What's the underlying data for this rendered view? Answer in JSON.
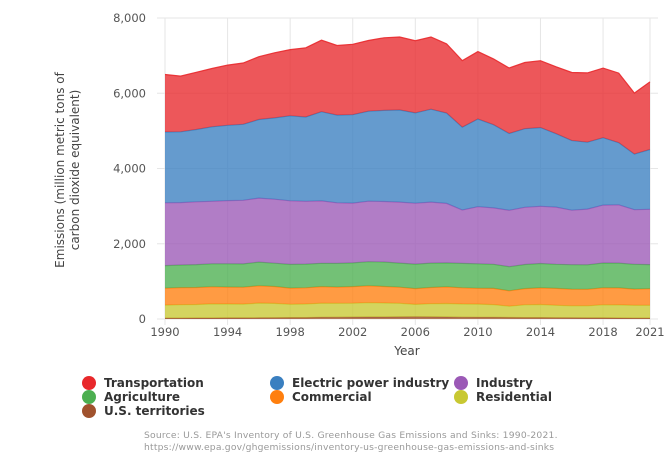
{
  "chart_data": {
    "type": "area",
    "stacked": true,
    "title": "",
    "xlabel": "Year",
    "ylabel": "Emissions (million metric tons of carbon dioxide equivalent)",
    "ylabel_lines": [
      "Emissions (million metric tons of",
      "carbon dioxide equivalent)"
    ],
    "x": [
      1990,
      1991,
      1992,
      1993,
      1994,
      1995,
      1996,
      1997,
      1998,
      1999,
      2000,
      2001,
      2002,
      2003,
      2004,
      2005,
      2006,
      2007,
      2008,
      2009,
      2010,
      2011,
      2012,
      2013,
      2014,
      2015,
      2016,
      2017,
      2018,
      2019,
      2020,
      2021
    ],
    "xlim": [
      1990,
      2021
    ],
    "ylim": [
      0,
      8000
    ],
    "x_ticks": [
      1990,
      1994,
      1998,
      2002,
      2006,
      2010,
      2014,
      2018,
      2021
    ],
    "x_tick_labels": [
      "1990",
      "1994",
      "1998",
      "2002",
      "2006",
      "2010",
      "2014",
      "2018",
      "2021"
    ],
    "y_ticks": [
      0,
      2000,
      4000,
      6000,
      8000
    ],
    "y_tick_labels": [
      "0",
      "2,000",
      "4,000",
      "6,000",
      "8,000"
    ],
    "grid": true,
    "legend_position": "bottom",
    "series": [
      {
        "name": "U.S. territories",
        "color": "#a0522d",
        "values": [
          24,
          25,
          26,
          27,
          28,
          30,
          32,
          34,
          36,
          38,
          45,
          48,
          50,
          52,
          54,
          56,
          58,
          56,
          52,
          48,
          46,
          44,
          40,
          38,
          36,
          34,
          32,
          30,
          28,
          26,
          24,
          25
        ]
      },
      {
        "name": "Residential",
        "color": "#c8c832",
        "values": [
          345,
          355,
          360,
          375,
          370,
          365,
          390,
          380,
          355,
          360,
          375,
          370,
          370,
          380,
          370,
          360,
          330,
          350,
          360,
          350,
          350,
          340,
          300,
          340,
          350,
          330,
          320,
          320,
          350,
          350,
          340,
          340
        ]
      },
      {
        "name": "Commercial",
        "color": "#ff7f0e",
        "values": [
          450,
          455,
          450,
          455,
          450,
          450,
          460,
          450,
          430,
          430,
          440,
          430,
          440,
          450,
          440,
          430,
          420,
          430,
          440,
          430,
          420,
          430,
          410,
          430,
          440,
          450,
          440,
          440,
          450,
          450,
          430,
          440
        ]
      },
      {
        "name": "Agriculture",
        "color": "#4caf50",
        "values": [
          600,
          600,
          610,
          610,
          620,
          620,
          630,
          620,
          630,
          630,
          620,
          630,
          630,
          640,
          650,
          640,
          650,
          650,
          640,
          650,
          650,
          640,
          640,
          640,
          650,
          640,
          650,
          650,
          660,
          660,
          660,
          640
        ]
      },
      {
        "name": "Industry",
        "color": "#9b59b6",
        "values": [
          1670,
          1660,
          1670,
          1660,
          1680,
          1690,
          1700,
          1700,
          1690,
          1670,
          1660,
          1610,
          1590,
          1610,
          1610,
          1620,
          1620,
          1620,
          1580,
          1420,
          1520,
          1500,
          1500,
          1520,
          1520,
          1520,
          1450,
          1480,
          1540,
          1550,
          1450,
          1470
        ]
      },
      {
        "name": "Electric power industry",
        "color": "#3a7fc0",
        "values": [
          1880,
          1880,
          1920,
          1980,
          2000,
          2020,
          2090,
          2160,
          2260,
          2240,
          2370,
          2330,
          2350,
          2390,
          2420,
          2450,
          2400,
          2470,
          2400,
          2200,
          2330,
          2210,
          2040,
          2090,
          2090,
          1950,
          1850,
          1780,
          1790,
          1650,
          1480,
          1590
        ]
      },
      {
        "name": "Transportation",
        "color": "#e8282b",
        "values": [
          1530,
          1480,
          1520,
          1550,
          1600,
          1630,
          1670,
          1730,
          1760,
          1840,
          1900,
          1850,
          1870,
          1880,
          1930,
          1940,
          1920,
          1920,
          1840,
          1770,
          1790,
          1750,
          1740,
          1760,
          1780,
          1780,
          1810,
          1840,
          1850,
          1850,
          1620,
          1800
        ]
      }
    ],
    "annotations": []
  },
  "legend": {
    "items": [
      {
        "label": "Transportation",
        "color": "#e8282b"
      },
      {
        "label": "Electric power industry",
        "color": "#3a7fc0"
      },
      {
        "label": "Industry",
        "color": "#9b59b6"
      },
      {
        "label": "Agriculture",
        "color": "#4caf50"
      },
      {
        "label": "Commercial",
        "color": "#ff7f0e"
      },
      {
        "label": "Residential",
        "color": "#c8c832"
      },
      {
        "label": "U.S. territories",
        "color": "#a0522d"
      }
    ]
  },
  "source": {
    "line1": "Source: U.S. EPA's Inventory of U.S. Greenhouse Gas Emissions and Sinks: 1990-2021.",
    "line2": "https://www.epa.gov/ghgemissions/inventory-us-greenhouse-gas-emissions-and-sinks"
  }
}
